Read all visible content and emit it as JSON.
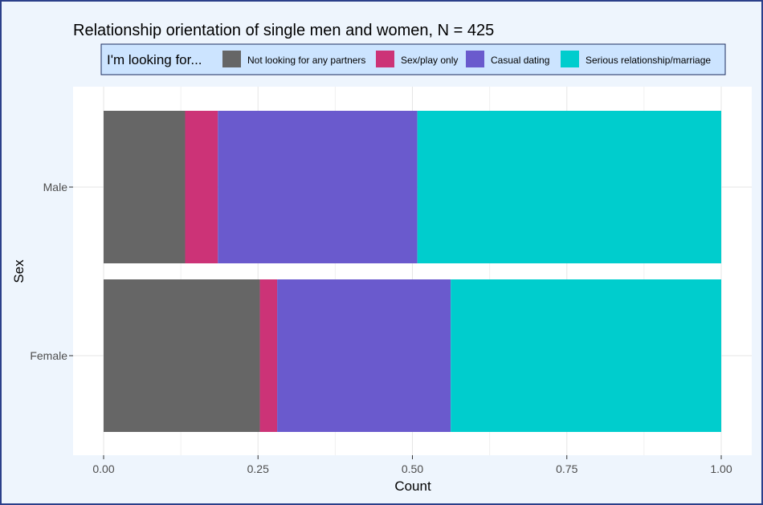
{
  "chart_data": {
    "type": "bar",
    "orientation": "horizontal",
    "stacked": true,
    "normalized": true,
    "title": "Relationship orientation of single men and women, N = 425",
    "xlabel": "Count",
    "ylabel": "Sex",
    "xlim": [
      0,
      1
    ],
    "xticks": [
      0.0,
      0.25,
      0.5,
      0.75,
      1.0
    ],
    "xtick_labels": [
      "0.00",
      "0.25",
      "0.50",
      "0.75",
      "1.00"
    ],
    "categories": [
      "Male",
      "Female"
    ],
    "legend_title": "I'm looking for...",
    "legend_position": "top",
    "grid": true,
    "series": [
      {
        "name": "Not looking for any partners",
        "color": "#666666",
        "values": [
          0.132,
          0.253
        ]
      },
      {
        "name": "Sex/play only",
        "color": "#cc3377",
        "values": [
          0.053,
          0.028
        ]
      },
      {
        "name": "Casual dating",
        "color": "#6a5acd",
        "values": [
          0.323,
          0.281
        ]
      },
      {
        "name": "Serious relationship/marriage",
        "color": "#00cdcd",
        "values": [
          0.492,
          0.438
        ]
      }
    ]
  }
}
